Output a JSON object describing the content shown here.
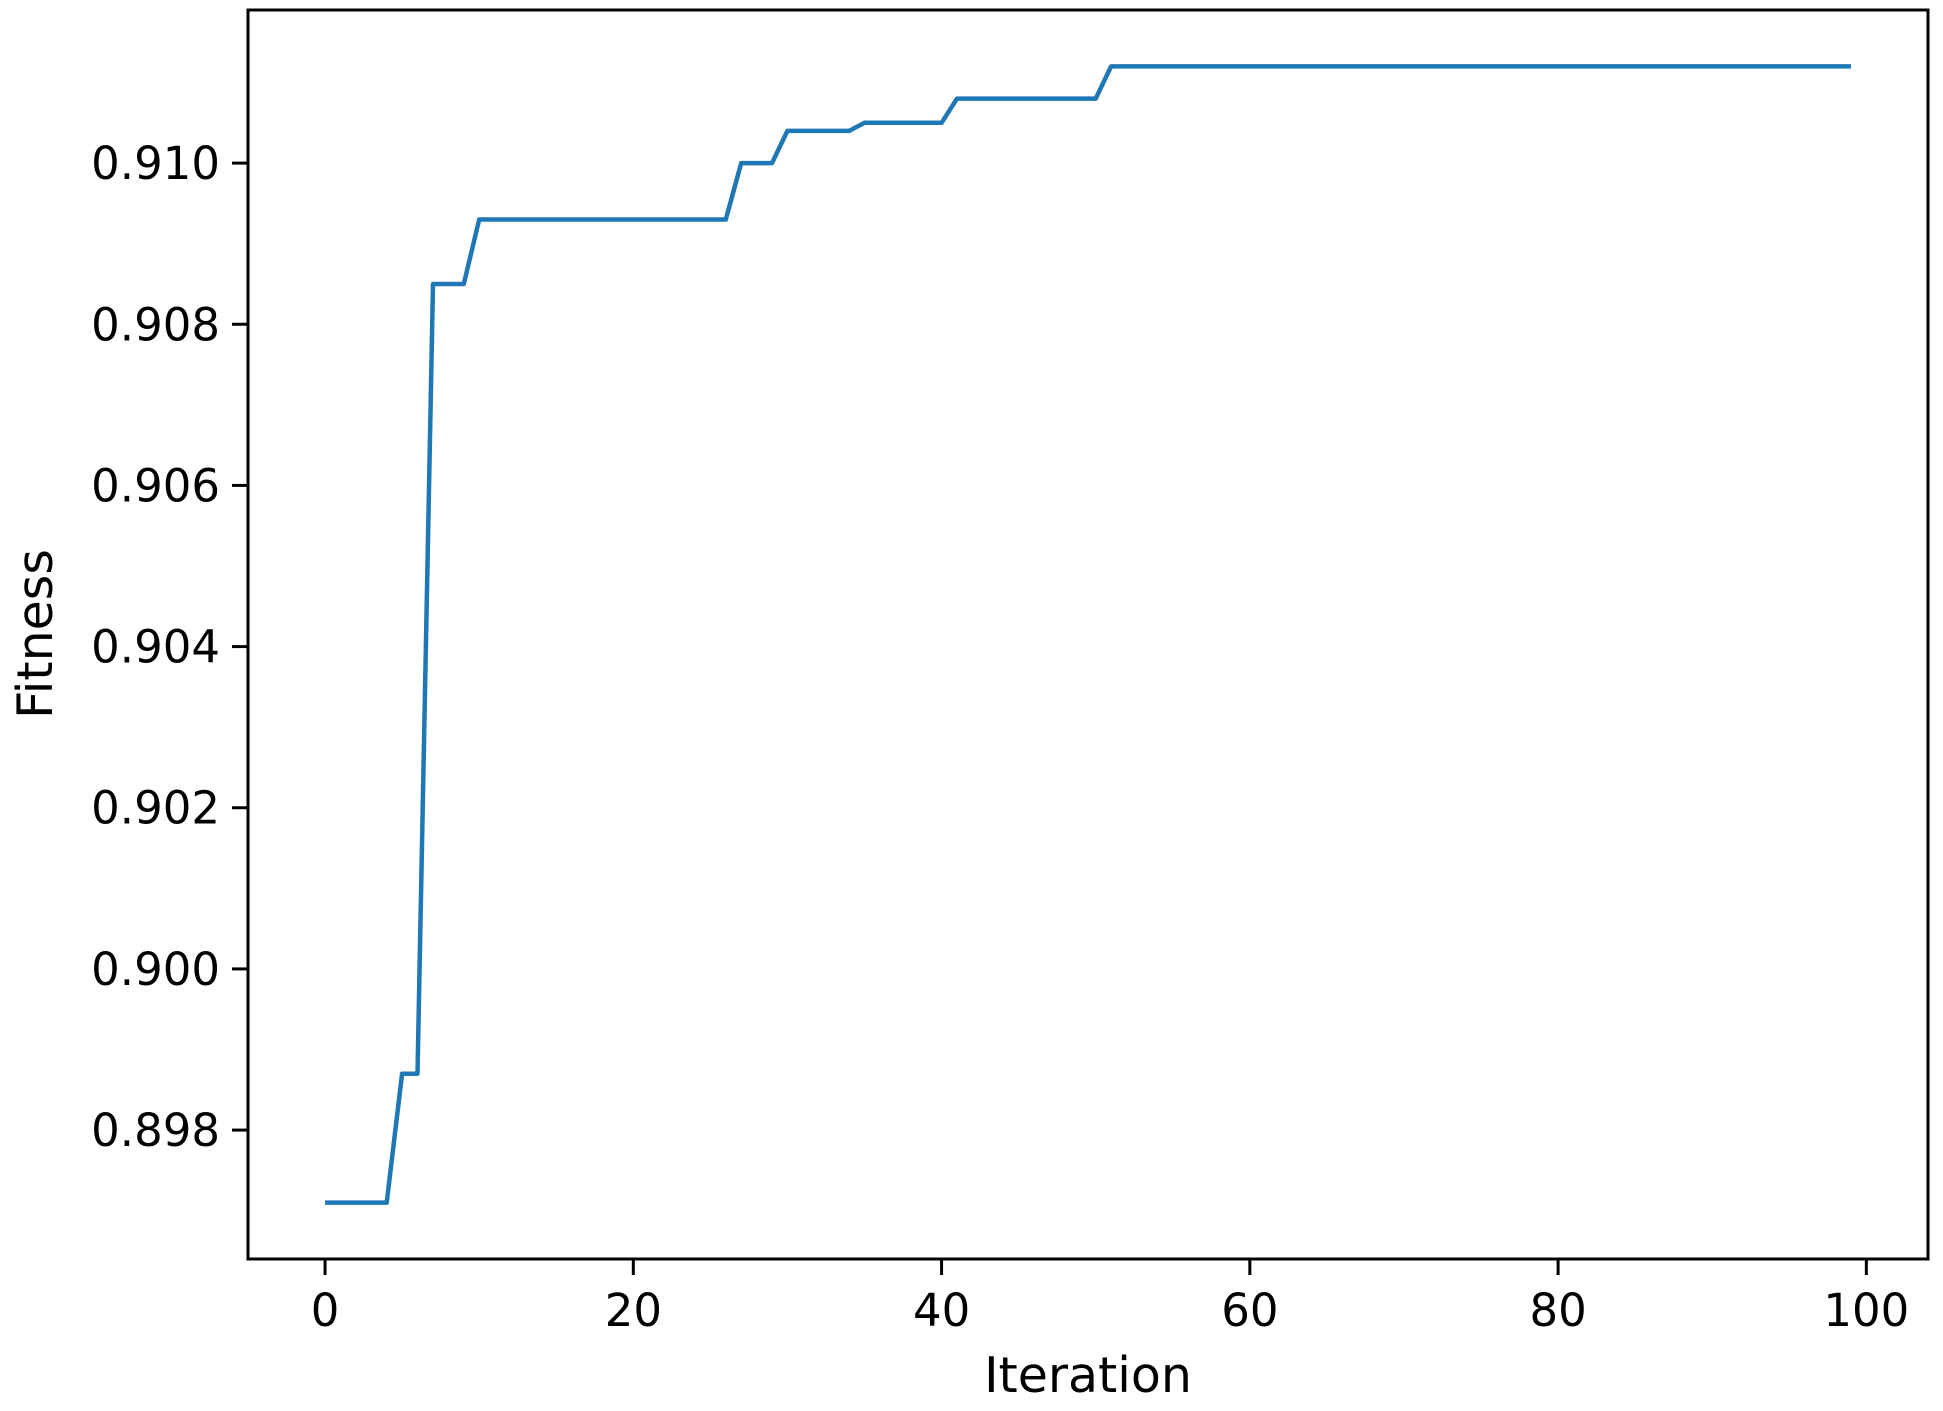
{
  "figure": {
    "background": "#ffffff",
    "axis_color": "#000000",
    "text_color": "#000000"
  },
  "chart_data": {
    "type": "line",
    "title": "",
    "xlabel": "Iteration",
    "ylabel": "Fitness",
    "xlim": [
      -5,
      104
    ],
    "ylim": [
      0.8964,
      0.9119
    ],
    "grid": false,
    "legend": null,
    "x_ticks": [
      {
        "value": 0,
        "label": "0"
      },
      {
        "value": 20,
        "label": "20"
      },
      {
        "value": 40,
        "label": "40"
      },
      {
        "value": 60,
        "label": "60"
      },
      {
        "value": 80,
        "label": "80"
      },
      {
        "value": 100,
        "label": "100"
      }
    ],
    "y_ticks": [
      {
        "value": 0.898,
        "label": "0.898"
      },
      {
        "value": 0.9,
        "label": "0.900"
      },
      {
        "value": 0.902,
        "label": "0.902"
      },
      {
        "value": 0.904,
        "label": "0.904"
      },
      {
        "value": 0.906,
        "label": "0.906"
      },
      {
        "value": 0.908,
        "label": "0.908"
      },
      {
        "value": 0.91,
        "label": "0.910"
      }
    ],
    "series": [
      {
        "color": "#1f77b4",
        "x_start": 0,
        "x_step": 1,
        "values": [
          0.8971,
          0.8971,
          0.8971,
          0.8971,
          0.8971,
          0.8987,
          0.8987,
          0.9085,
          0.9085,
          0.9085,
          0.9093,
          0.9093,
          0.9093,
          0.9093,
          0.9093,
          0.9093,
          0.9093,
          0.9093,
          0.9093,
          0.9093,
          0.9093,
          0.9093,
          0.9093,
          0.9093,
          0.9093,
          0.9093,
          0.9093,
          0.91,
          0.91,
          0.91,
          0.9104,
          0.9104,
          0.9104,
          0.9104,
          0.9104,
          0.9105,
          0.9105,
          0.9105,
          0.9105,
          0.9105,
          0.9105,
          0.9108,
          0.9108,
          0.9108,
          0.9108,
          0.9108,
          0.9108,
          0.9108,
          0.9108,
          0.9108,
          0.9108,
          0.9112,
          0.9112,
          0.9112,
          0.9112,
          0.9112,
          0.9112,
          0.9112,
          0.9112,
          0.9112,
          0.9112,
          0.9112,
          0.9112,
          0.9112,
          0.9112,
          0.9112,
          0.9112,
          0.9112,
          0.9112,
          0.9112,
          0.9112,
          0.9112,
          0.9112,
          0.9112,
          0.9112,
          0.9112,
          0.9112,
          0.9112,
          0.9112,
          0.9112,
          0.9112,
          0.9112,
          0.9112,
          0.9112,
          0.9112,
          0.9112,
          0.9112,
          0.9112,
          0.9112,
          0.9112,
          0.9112,
          0.9112,
          0.9112,
          0.9112,
          0.9112,
          0.9112,
          0.9112,
          0.9112,
          0.9112,
          0.9112
        ]
      }
    ]
  }
}
